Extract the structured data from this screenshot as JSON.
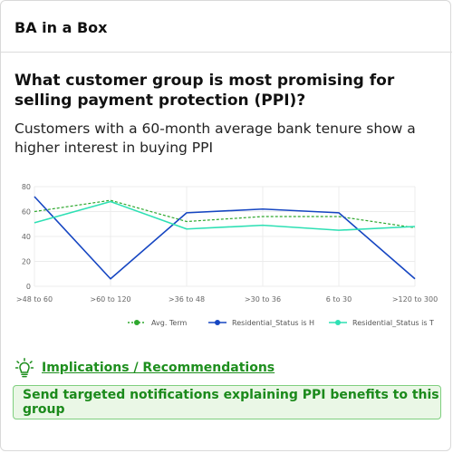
{
  "header": {
    "app_title": "BA in a Box"
  },
  "question": "What customer group is most promising for selling payment protection (PPI)?",
  "subtitle": "Customers with a 60-month average bank tenure show a higher interest in buying PPI",
  "colors": {
    "avg_term": "#2ea82e",
    "residential_h": "#1646c2",
    "residential_t": "#2ee0b4",
    "accent_green": "#1e8f1e"
  },
  "chart_data": {
    "type": "line",
    "categories": [
      ">48 to 60",
      ">60 to 120",
      ">36 to 48",
      ">30 to 36",
      "6 to 30",
      ">120 to 300"
    ],
    "ylim": [
      0,
      80
    ],
    "yticks": [
      0,
      20,
      40,
      60,
      80
    ],
    "grid": true,
    "legend_position": "bottom",
    "series": [
      {
        "name": "Avg. Term",
        "style": "dotted",
        "color": "#2ea82e",
        "values": [
          60,
          69,
          52,
          56,
          56,
          47
        ]
      },
      {
        "name": "Residential_Status is H",
        "style": "solid",
        "color": "#1646c2",
        "values": [
          72,
          6,
          59,
          62,
          59,
          6
        ]
      },
      {
        "name": "Residential_Status is T",
        "style": "solid",
        "color": "#2ee0b4",
        "values": [
          51,
          68,
          46,
          49,
          45,
          48
        ]
      }
    ]
  },
  "implications": {
    "icon": "lightbulb-icon",
    "title": "Implications / Recommendations",
    "recommendation": "Send targeted notifications explaining PPI benefits to this group"
  }
}
